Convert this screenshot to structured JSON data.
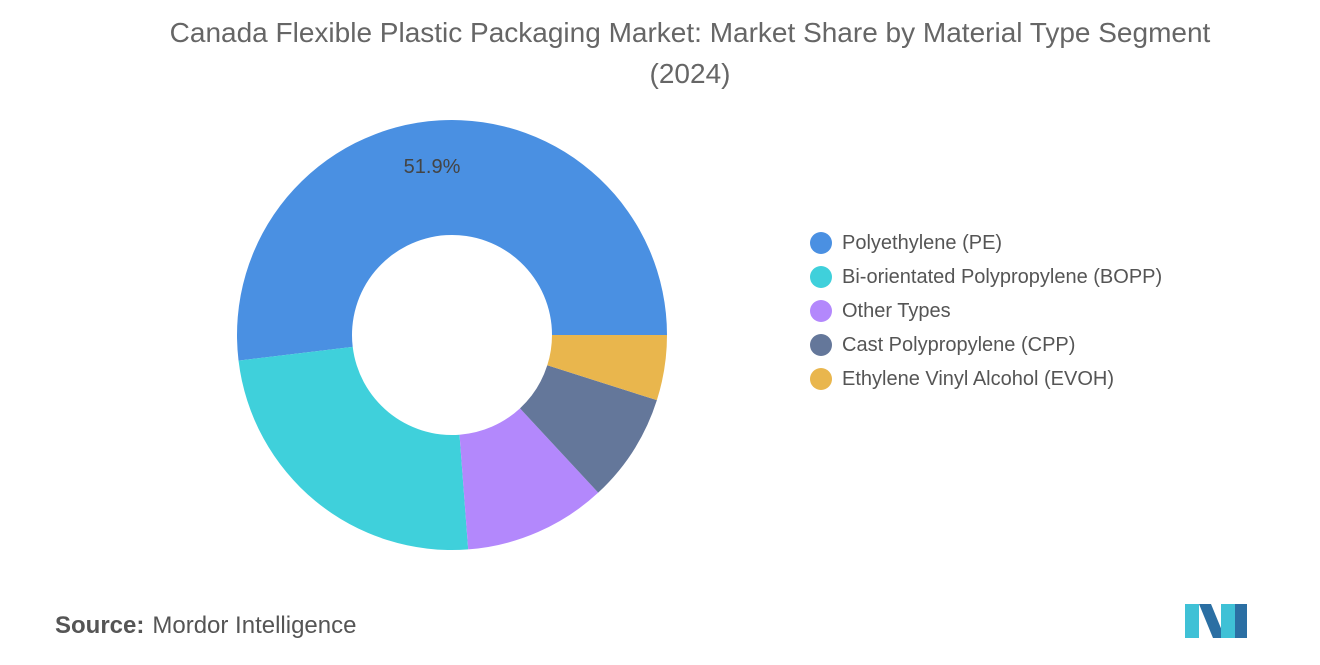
{
  "chart_data": {
    "type": "donut",
    "title": "Canada Flexible Plastic Packaging Market: Market Share by Material Type Segment (2024)",
    "categories": [
      "Polyethylene (PE)",
      "Bi-orientated Polypropylene (BOPP)",
      "Other Types",
      "Cast Polypropylene (CPP)",
      "Ethylene Vinyl Alcohol (EVOH)"
    ],
    "values": [
      51.9,
      24.3,
      10.7,
      8.2,
      4.9
    ],
    "value_labels": [
      "51.9%",
      null,
      null,
      null,
      null
    ],
    "colors": [
      "#4a90e2",
      "#3fd0db",
      "#b388fc",
      "#64779a",
      "#e9b64d"
    ],
    "legend": "right"
  },
  "footer": {
    "source_label": "Source:",
    "source": "Mordor Intelligence"
  }
}
